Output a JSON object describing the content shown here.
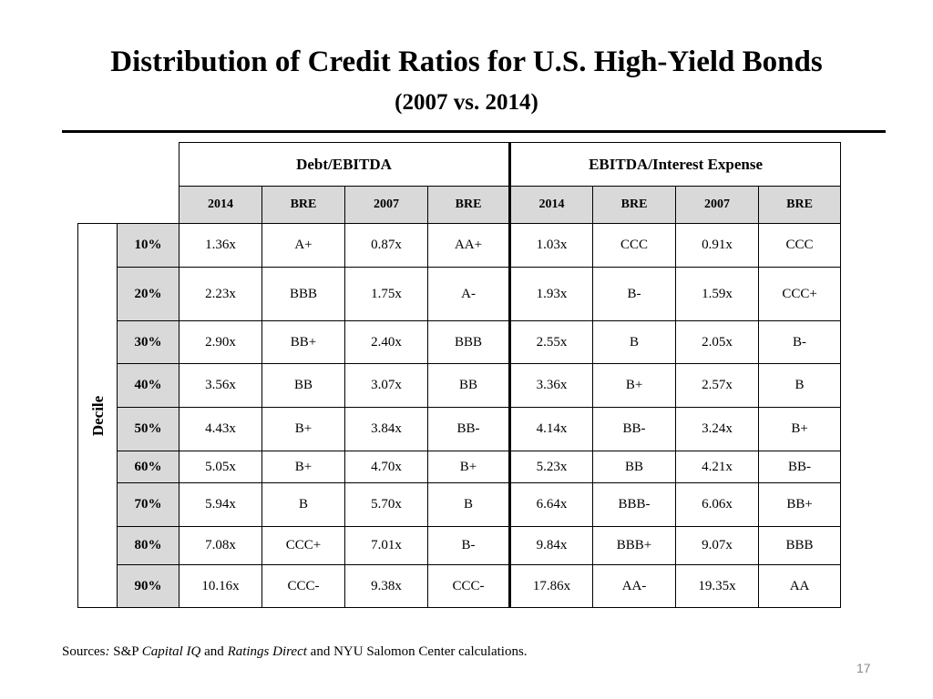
{
  "title": "Distribution of Credit Ratios for U.S. High-Yield Bonds",
  "subtitle": "(2007 vs. 2014)",
  "table": {
    "group_headers": [
      "Debt/EBITDA",
      "EBITDA/Interest Expense"
    ],
    "sub_headers": [
      "2014",
      "BRE",
      "2007",
      "BRE",
      "2014",
      "BRE",
      "2007",
      "BRE"
    ],
    "axis_label": "Decile",
    "rows": [
      {
        "decile": "10%",
        "cells": [
          "1.36x",
          "A+",
          "0.87x",
          "AA+",
          "1.03x",
          "CCC",
          "0.91x",
          "CCC"
        ]
      },
      {
        "decile": "20%",
        "cells": [
          "2.23x",
          "BBB",
          "1.75x",
          "A-",
          "1.93x",
          "B-",
          "1.59x",
          "CCC+"
        ]
      },
      {
        "decile": "30%",
        "cells": [
          "2.90x",
          "BB+",
          "2.40x",
          "BBB",
          "2.55x",
          "B",
          "2.05x",
          "B-"
        ]
      },
      {
        "decile": "40%",
        "cells": [
          "3.56x",
          "BB",
          "3.07x",
          "BB",
          "3.36x",
          "B+",
          "2.57x",
          "B"
        ]
      },
      {
        "decile": "50%",
        "cells": [
          "4.43x",
          "B+",
          "3.84x",
          "BB-",
          "4.14x",
          "BB-",
          "3.24x",
          "B+"
        ]
      },
      {
        "decile": "60%",
        "cells": [
          "5.05x",
          "B+",
          "4.70x",
          "B+",
          "5.23x",
          "BB",
          "4.21x",
          "BB-"
        ]
      },
      {
        "decile": "70%",
        "cells": [
          "5.94x",
          "B",
          "5.70x",
          "B",
          "6.64x",
          "BBB-",
          "6.06x",
          "BB+"
        ]
      },
      {
        "decile": "80%",
        "cells": [
          "7.08x",
          "CCC+",
          "7.01x",
          "B-",
          "9.84x",
          "BBB+",
          "9.07x",
          "BBB"
        ]
      },
      {
        "decile": "90%",
        "cells": [
          "10.16x",
          "CCC-",
          "9.38x",
          "CCC-",
          "17.86x",
          "AA-",
          "19.35x",
          "AA"
        ]
      }
    ]
  },
  "footer": {
    "prefix": "Sources",
    "colon": ":",
    "sp": " S&P ",
    "capital_iq": "Capital IQ",
    "and1": " and ",
    "ratings_direct": "Ratings Direct",
    "rest": " and NYU Salomon Center calculations."
  },
  "page_number": "17"
}
